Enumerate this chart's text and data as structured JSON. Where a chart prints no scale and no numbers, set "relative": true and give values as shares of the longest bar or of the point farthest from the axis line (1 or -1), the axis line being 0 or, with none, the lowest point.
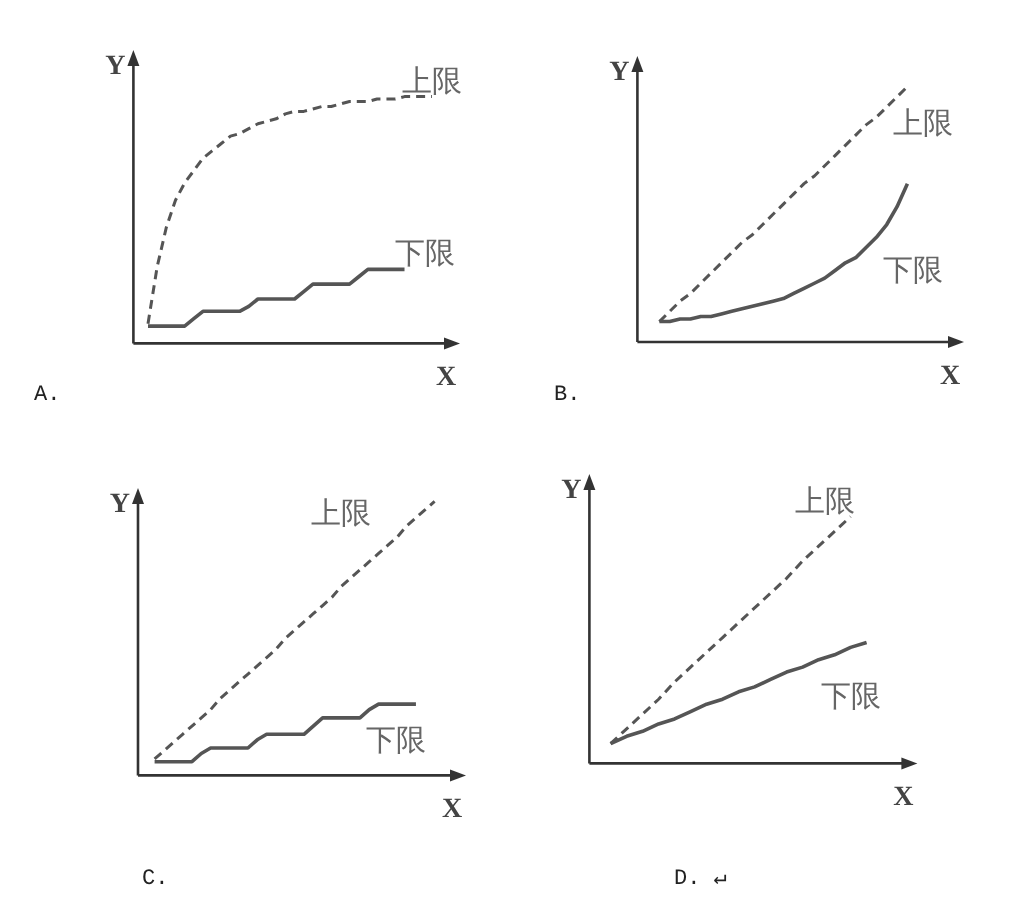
{
  "chart_data": [
    {
      "type": "line",
      "relative": true,
      "xlabel": "X",
      "ylabel": "Y",
      "annotations": [
        "A."
      ],
      "categories": [
        null,
        null,
        null,
        null,
        null,
        null,
        null,
        null,
        null,
        null,
        null,
        null,
        null,
        null,
        null,
        null,
        null,
        null,
        null,
        null,
        null,
        null,
        null,
        null,
        null,
        null,
        null,
        null,
        null,
        null,
        null,
        null
      ],
      "series": [
        {
          "name": "上限",
          "color": "#555555",
          "line_style": "dashed",
          "values": [
            0.08,
            0.31,
            0.47,
            0.58,
            0.65,
            0.7,
            0.75,
            0.78,
            0.81,
            0.84,
            0.85,
            0.87,
            0.89,
            0.9,
            0.91,
            0.93,
            0.94,
            0.94,
            0.95,
            0.96,
            0.96,
            0.97,
            0.98,
            0.98,
            0.98,
            0.99,
            0.99,
            0.99,
            1,
            1,
            1,
            1
          ]
        },
        {
          "name": "下限",
          "color": "#555555",
          "line_style": "solid",
          "values": [
            0.07,
            0.07,
            0.07,
            0.07,
            0.07,
            0.1,
            0.13,
            0.13,
            0.13,
            0.13,
            0.13,
            0.15,
            0.18,
            0.18,
            0.18,
            0.18,
            0.18,
            0.21,
            0.24,
            0.24,
            0.24,
            0.24,
            0.24,
            0.27,
            0.3,
            0.3,
            0.3,
            0.3,
            0.3,
            null,
            null,
            null
          ]
        }
      ]
    },
    {
      "type": "line",
      "relative": true,
      "xlabel": "X",
      "ylabel": "Y",
      "annotations": [
        "B."
      ],
      "categories": [
        null,
        null,
        null,
        null,
        null,
        null,
        null,
        null,
        null,
        null,
        null,
        null,
        null,
        null,
        null,
        null,
        null,
        null,
        null,
        null,
        null,
        null,
        null,
        null,
        null
      ],
      "series": [
        {
          "name": "上限",
          "color": "#555555",
          "line_style": "dashed",
          "values": [
            0.08,
            0.12,
            0.16,
            0.19,
            0.23,
            0.27,
            0.31,
            0.35,
            0.39,
            0.42,
            0.46,
            0.5,
            0.54,
            0.58,
            0.62,
            0.65,
            0.69,
            0.73,
            0.77,
            0.81,
            0.85,
            0.88,
            0.92,
            0.96,
            1
          ]
        },
        {
          "name": "下限",
          "color": "#555555",
          "line_style": "solid",
          "values": [
            0.08,
            0.08,
            0.09,
            0.09,
            0.1,
            0.1,
            0.11,
            0.12,
            0.13,
            0.14,
            0.15,
            0.16,
            0.17,
            0.19,
            0.21,
            0.23,
            0.25,
            0.28,
            0.31,
            0.33,
            0.37,
            0.41,
            0.46,
            0.53,
            0.62
          ]
        }
      ]
    },
    {
      "type": "line",
      "relative": true,
      "xlabel": "X",
      "ylabel": "Y",
      "annotations": [
        "C."
      ],
      "categories": [
        null,
        null,
        null,
        null,
        null,
        null,
        null,
        null,
        null,
        null,
        null,
        null,
        null,
        null,
        null,
        null,
        null,
        null,
        null,
        null,
        null,
        null,
        null,
        null,
        null,
        null,
        null,
        null,
        null,
        null,
        null
      ],
      "series": [
        {
          "name": "上限",
          "color": "#555555",
          "line_style": "dashed",
          "values": [
            0.06,
            0.09,
            0.12,
            0.15,
            0.18,
            0.21,
            0.24,
            0.28,
            0.31,
            0.34,
            0.37,
            0.4,
            0.43,
            0.46,
            0.5,
            0.53,
            0.56,
            0.59,
            0.62,
            0.65,
            0.69,
            0.72,
            0.75,
            0.78,
            0.81,
            0.84,
            0.87,
            0.91,
            0.94,
            0.97,
            1
          ]
        },
        {
          "name": "下限",
          "color": "#555555",
          "line_style": "solid",
          "values": [
            0.05,
            0.05,
            0.05,
            0.05,
            0.05,
            0.08,
            0.1,
            0.1,
            0.1,
            0.1,
            0.1,
            0.13,
            0.15,
            0.15,
            0.15,
            0.15,
            0.15,
            0.18,
            0.21,
            0.21,
            0.21,
            0.21,
            0.21,
            0.24,
            0.26,
            0.26,
            0.26,
            0.26,
            0.26,
            null,
            null
          ]
        }
      ]
    },
    {
      "type": "line",
      "relative": true,
      "xlabel": "X",
      "ylabel": "Y",
      "annotations": [
        "D. ↵"
      ],
      "categories": [
        null,
        null,
        null,
        null,
        null,
        null,
        null,
        null,
        null,
        null,
        null,
        null,
        null,
        null,
        null,
        null,
        null
      ],
      "series": [
        {
          "name": "上限",
          "color": "#555555",
          "line_style": "dashed",
          "values": [
            0.08,
            0.14,
            0.2,
            0.26,
            0.33,
            0.39,
            0.45,
            0.51,
            0.57,
            0.63,
            0.69,
            0.75,
            0.82,
            0.88,
            0.94,
            1,
            null
          ]
        },
        {
          "name": "下限",
          "color": "#555555",
          "line_style": "solid",
          "values": [
            0.08,
            0.11,
            0.13,
            0.16,
            0.18,
            0.21,
            0.24,
            0.26,
            0.29,
            0.31,
            0.34,
            0.37,
            0.39,
            0.42,
            0.44,
            0.47,
            0.49
          ]
        }
      ]
    }
  ]
}
